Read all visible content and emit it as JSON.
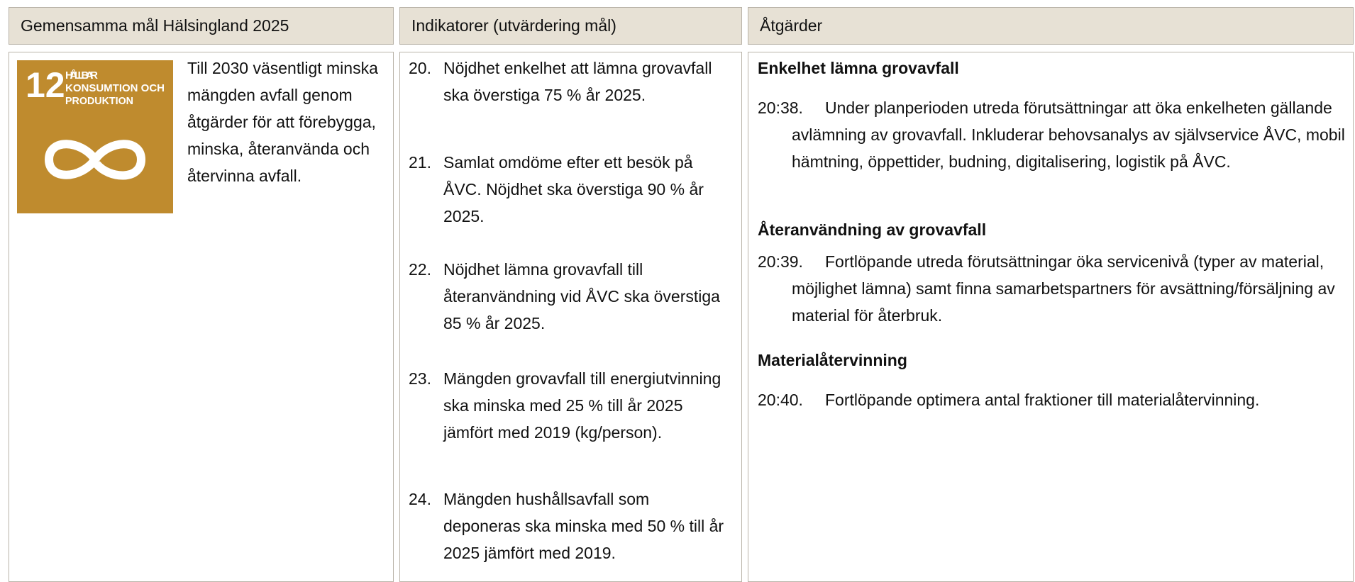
{
  "headers": [
    "Gemensamma mål Hälsingland 2025",
    "Indikatorer (utvärdering mål)",
    "Åtgärder"
  ],
  "goal": {
    "logo": {
      "number": "12",
      "lines": [
        "HÅLLBAR",
        "KONSUMTION OCH",
        "PRODUKTION"
      ]
    },
    "text": "Till 2030 väsentligt minska mängden avfall genom åtgärder för att förebygga, minska, återanvända och återvinna avfall."
  },
  "indicators": [
    {
      "number": "20.",
      "text": "Nöjdhet enkelhet att lämna grovavfall ska överstiga 75 % år 2025."
    },
    {
      "number": "21.",
      "text": "Samlat omdöme efter ett besök på ÅVC. Nöjdhet ska överstiga 90 % år 2025."
    },
    {
      "number": "22.",
      "text": "Nöjdhet lämna grovavfall till återanvändning vid ÅVC ska överstiga 85 % år 2025."
    },
    {
      "number": "23.",
      "text": "Mängden grovavfall till energiutvinning ska minska med 25 % till år 2025 jämfört med 2019 (kg/person)."
    },
    {
      "number": "24.",
      "text": "Mängden hushållsavfall som deponeras ska minska med 50 % till år 2025 jämfört med 2019."
    }
  ],
  "actions": [
    {
      "heading": "Enkelhet lämna grovavfall",
      "number": "20:38.",
      "text": "Under planperioden utreda förutsättningar att öka enkelheten gällande avlämning av grovavfall. Inkluderar behovsanalys av självservice ÅVC, mobil hämtning, öppettider, budning, digitalisering, logistik på ÅVC."
    },
    {
      "heading": "Återanvändning av grovavfall",
      "number": "20:39.",
      "text": "Fortlöpande utreda förutsättningar öka servicenivå (typer av material, möjlighet lämna) samt finna samarbetspartners för avsättning/försäljning av material för återbruk."
    },
    {
      "heading": "Materialåtervinning",
      "number": "20:40.",
      "text": "Fortlöpande optimera antal fraktioner till materialåtervinning."
    }
  ]
}
